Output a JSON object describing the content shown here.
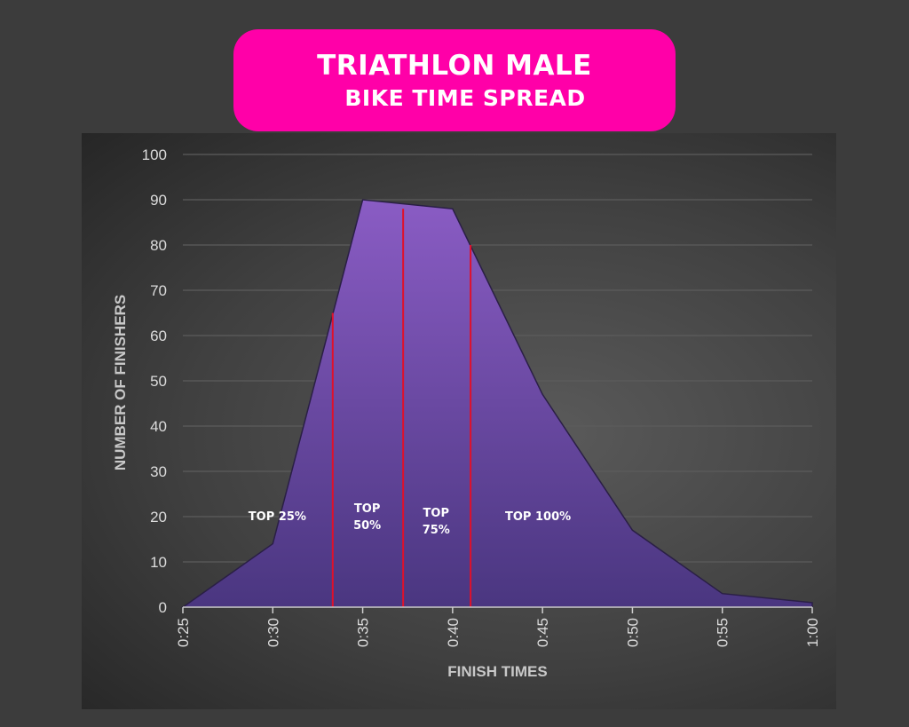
{
  "header": {
    "title_line1": "TRIATHLON MALE",
    "title_line2": "BIKE TIME SPREAD"
  },
  "colors": {
    "title_background": "#ff00a8",
    "area_fill_top": "#8a5cc4",
    "area_fill_bottom": "#4a3680",
    "divider": "#e0102a",
    "grid": "#5c5c5c"
  },
  "chart_data": {
    "type": "area",
    "xlabel": "FINISH TIMES",
    "ylabel": "NUMBER OF FINISHERS",
    "ylim": [
      0,
      100
    ],
    "y_ticks": [
      "0",
      "10",
      "20",
      "30",
      "40",
      "50",
      "60",
      "70",
      "80",
      "90",
      "100"
    ],
    "x_tick_labels": [
      "0:25",
      "0:30",
      "0:35",
      "0:40",
      "0:45",
      "0:50",
      "0:55",
      "1:00"
    ],
    "grid": true,
    "series": [
      {
        "x": [
          "0:25",
          "0:30",
          "0:35",
          "0:40",
          "0:45",
          "0:50",
          "0:55",
          "1:00"
        ],
        "values": [
          0,
          14,
          90,
          88,
          47,
          17,
          3,
          1
        ]
      }
    ],
    "dividers": [
      {
        "x": "0:33:20",
        "y_top": 65
      },
      {
        "x": "0:37:15",
        "y_top": 88
      },
      {
        "x": "0:41:00",
        "y_top": 80
      }
    ],
    "annotations": [
      {
        "label": "TOP 25%",
        "x": "0:30:15",
        "y": 20
      },
      {
        "label": "TOP\n50%",
        "x": "0:35:15",
        "y": 20
      },
      {
        "label": "TOP\n75%",
        "x": "0:39:05",
        "y": 19
      },
      {
        "label": "TOP 100%",
        "x": "0:44:45",
        "y": 20
      }
    ]
  }
}
